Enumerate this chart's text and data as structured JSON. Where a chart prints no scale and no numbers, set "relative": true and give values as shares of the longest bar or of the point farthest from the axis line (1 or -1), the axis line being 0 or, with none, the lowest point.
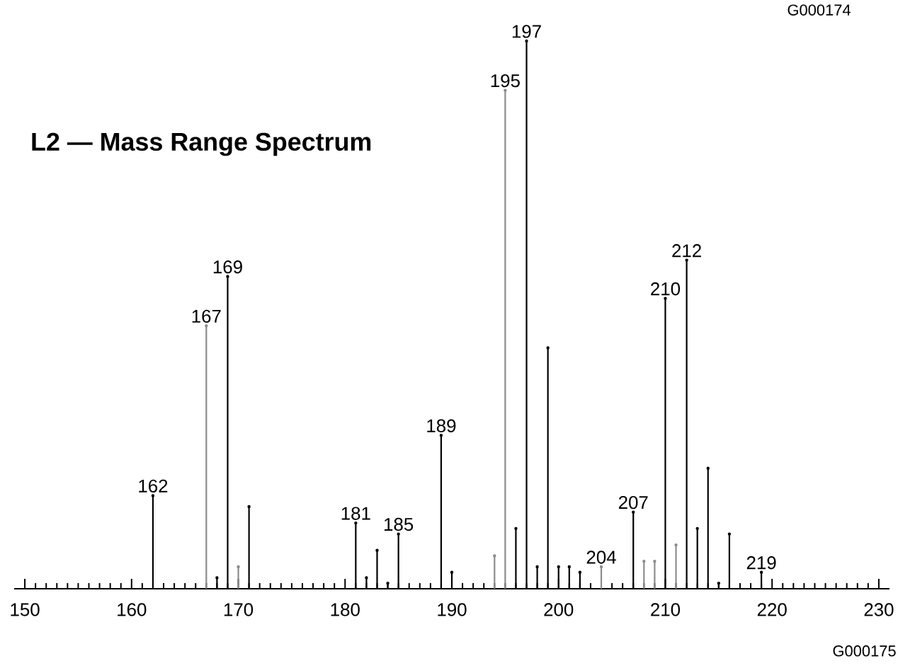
{
  "chart_data": {
    "type": "lollipop",
    "title": "L2 — Mass Range Spectrum",
    "relative": true,
    "x": [
      162,
      167,
      168,
      169,
      170,
      171,
      181,
      182,
      183,
      184,
      185,
      189,
      190,
      194,
      195,
      196,
      197,
      198,
      199,
      200,
      201,
      202,
      204,
      207,
      208,
      209,
      210,
      211,
      212,
      213,
      214,
      215,
      216,
      219
    ],
    "values": [
      0.17,
      0.48,
      0.02,
      0.57,
      0.04,
      0.15,
      0.12,
      0.02,
      0.07,
      0.01,
      0.1,
      0.28,
      0.03,
      0.06,
      0.91,
      0.11,
      1,
      0.04,
      0.44,
      0.04,
      0.04,
      0.03,
      0.04,
      0.14,
      0.05,
      0.05,
      0.53,
      0.08,
      0.6,
      0.11,
      0.22,
      0.01,
      0.1,
      0.03
    ],
    "colors": [
      "#000000",
      "#8c8c8c",
      "#000000",
      "#000000",
      "#8c8c8c",
      "#000000",
      "#000000",
      "#000000",
      "#000000",
      "#000000",
      "#000000",
      "#000000",
      "#000000",
      "#8c8c8c",
      "#8c8c8c",
      "#000000",
      "#000000",
      "#000000",
      "#000000",
      "#000000",
      "#000000",
      "#000000",
      "#8c8c8c",
      "#000000",
      "#8c8c8c",
      "#8c8c8c",
      "#000000",
      "#8c8c8c",
      "#000000",
      "#000000",
      "#000000",
      "#000000",
      "#000000",
      "#000000"
    ],
    "xlim": [
      149,
      231
    ],
    "xticks": [
      150,
      160,
      170,
      180,
      190,
      200,
      210,
      220,
      230
    ],
    "annotations": [
      {
        "text": "162",
        "x": 162,
        "y": 0.17
      },
      {
        "text": "167",
        "x": 167,
        "y": 0.48
      },
      {
        "text": "169",
        "x": 169,
        "y": 0.57
      },
      {
        "text": "181",
        "x": 181,
        "y": 0.12
      },
      {
        "text": "185",
        "x": 185,
        "y": 0.1
      },
      {
        "text": "189",
        "x": 189,
        "y": 0.28
      },
      {
        "text": "195",
        "x": 195,
        "y": 0.91
      },
      {
        "text": "197",
        "x": 197,
        "y": 1
      },
      {
        "text": "204",
        "x": 204,
        "y": 0.04
      },
      {
        "text": "207",
        "x": 207,
        "y": 0.14
      },
      {
        "text": "210",
        "x": 210,
        "y": 0.53
      },
      {
        "text": "212",
        "x": 212,
        "y": 0.6
      },
      {
        "text": "219",
        "x": 219,
        "y": 0.03
      },
      "G000174",
      "G000175"
    ]
  }
}
